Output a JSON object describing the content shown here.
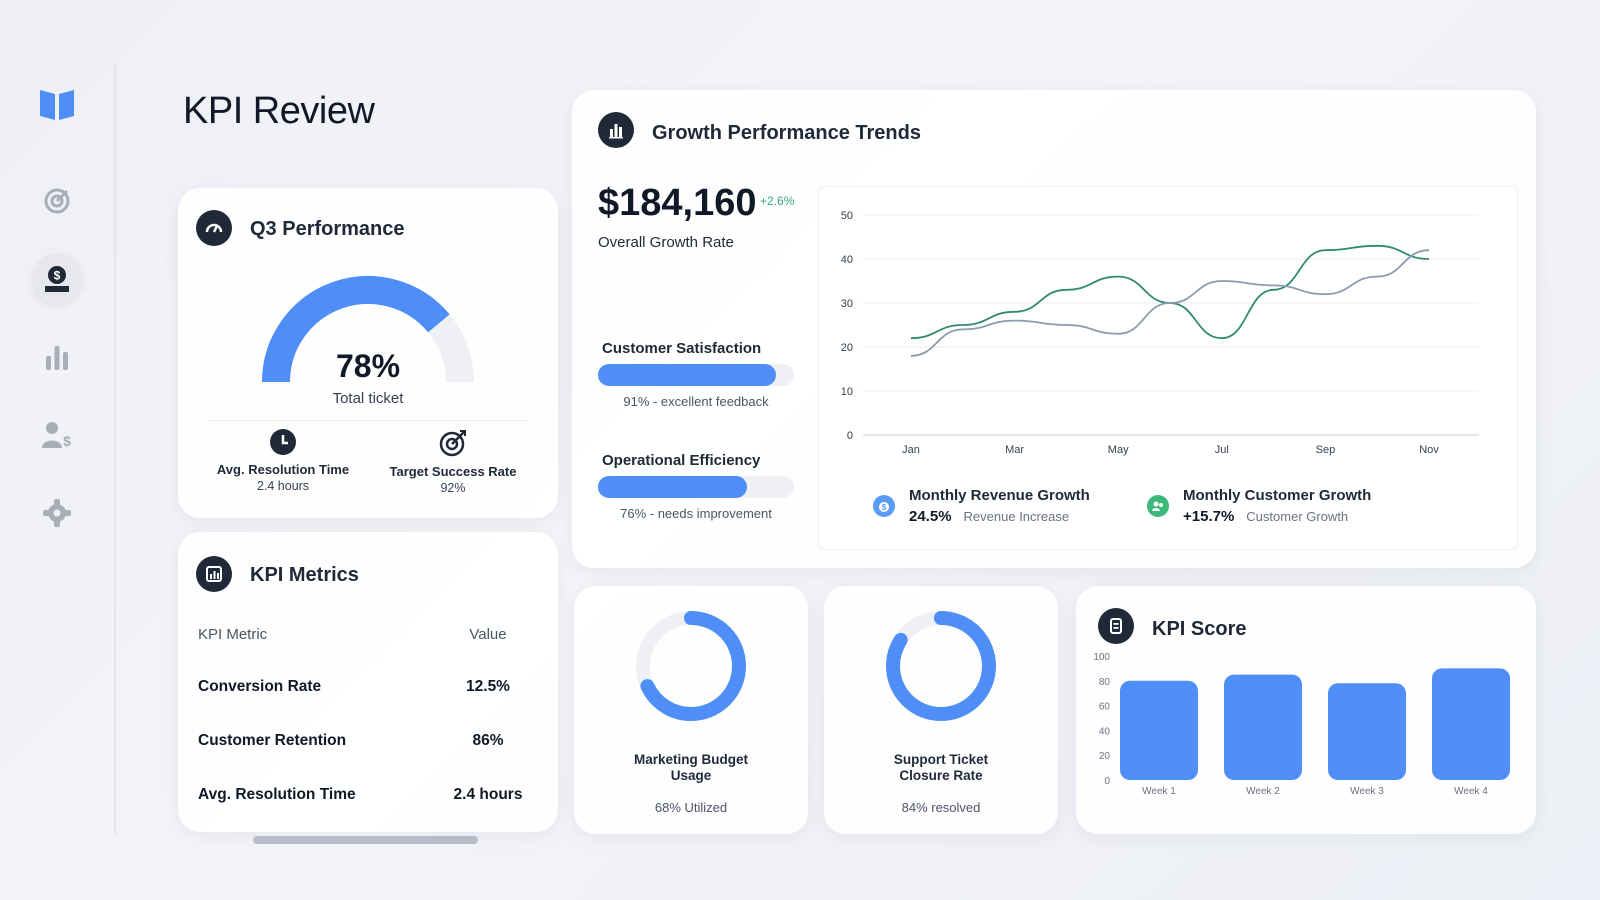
{
  "page": {
    "title": "KPI Review"
  },
  "sidebar": {
    "items": [
      {
        "name": "logo",
        "icon": "book-open-icon"
      },
      {
        "name": "target",
        "icon": "target-icon"
      },
      {
        "name": "finance",
        "icon": "money-hand-icon",
        "active": true
      },
      {
        "name": "charts",
        "icon": "bar-chart-icon"
      },
      {
        "name": "users-dollar",
        "icon": "user-dollar-icon"
      },
      {
        "name": "settings",
        "icon": "gear-icon"
      }
    ]
  },
  "q3": {
    "title": "Q3 Performance",
    "gauge_value": 0.78,
    "gauge_label": "78%",
    "gauge_sub": "Total ticket",
    "resolution_label": "Avg. Resolution Time",
    "resolution_value": "2.4 hours",
    "target_label": "Target Success Rate",
    "target_value": "92%"
  },
  "metrics": {
    "title": "KPI Metrics",
    "header_metric": "KPI Metric",
    "header_value": "Value",
    "rows": [
      {
        "name": "Conversion Rate",
        "value": "12.5%"
      },
      {
        "name": "Customer Retention",
        "value": "86%"
      },
      {
        "name": "Avg. Resolution Time",
        "value": "2.4 hours"
      }
    ]
  },
  "growth": {
    "title": "Growth Performance Trends",
    "amount": "$184,160",
    "delta": "+2.6%",
    "subtitle": "Overall Growth Rate",
    "bars": [
      {
        "label": "Customer Satisfaction",
        "value": 0.91,
        "note": "91% - excellent feedback"
      },
      {
        "label": "Operational Efficiency",
        "value": 0.76,
        "note": "76% - needs improvement"
      }
    ],
    "legend": [
      {
        "title": "Monthly Revenue Growth",
        "value": "24.5%",
        "sub": "Revenue Increase",
        "color": "#5b9bf8",
        "icon": "money-bag-icon"
      },
      {
        "title": "Monthly Customer Growth",
        "value": "+15.7%",
        "sub": "Customer Growth",
        "color": "#3cb878",
        "icon": "users-icon"
      }
    ]
  },
  "chart_data": [
    {
      "type": "line",
      "categories": [
        "Jan",
        "Feb",
        "Mar",
        "Apr",
        "May",
        "Jun",
        "Jul",
        "Aug",
        "Sep",
        "Oct",
        "Nov"
      ],
      "tick_labels": [
        "Jan",
        "Mar",
        "May",
        "Jul",
        "Sep",
        "Nov"
      ],
      "ylim": [
        0,
        50
      ],
      "yticks": [
        0,
        10,
        20,
        30,
        40,
        50
      ],
      "grid": true,
      "series": [
        {
          "color": "#2e8b6b",
          "values": [
            22,
            25,
            28,
            33,
            36,
            30,
            22,
            33,
            42,
            43,
            40
          ]
        },
        {
          "color": "#8a9bb0",
          "values": [
            18,
            24,
            26,
            25,
            23,
            30,
            35,
            34,
            32,
            36,
            42
          ]
        }
      ]
    },
    {
      "type": "bar",
      "categories": [
        "Week 1",
        "Week 2",
        "Week 3",
        "Week 4"
      ],
      "values": [
        80,
        85,
        78,
        90
      ],
      "ylim": [
        0,
        100
      ],
      "yticks": [
        0,
        20,
        40,
        60,
        80,
        100
      ],
      "color": "#4f8ef7"
    }
  ],
  "donuts": [
    {
      "title_line1": "Marketing Budget",
      "title_line2": "Usage",
      "value": 0.68,
      "note": "68% Utilized"
    },
    {
      "title_line1": "Support Ticket",
      "title_line2": "Closure Rate",
      "value": 0.84,
      "note": "84% resolved"
    }
  ],
  "score": {
    "title": "KPI Score"
  }
}
